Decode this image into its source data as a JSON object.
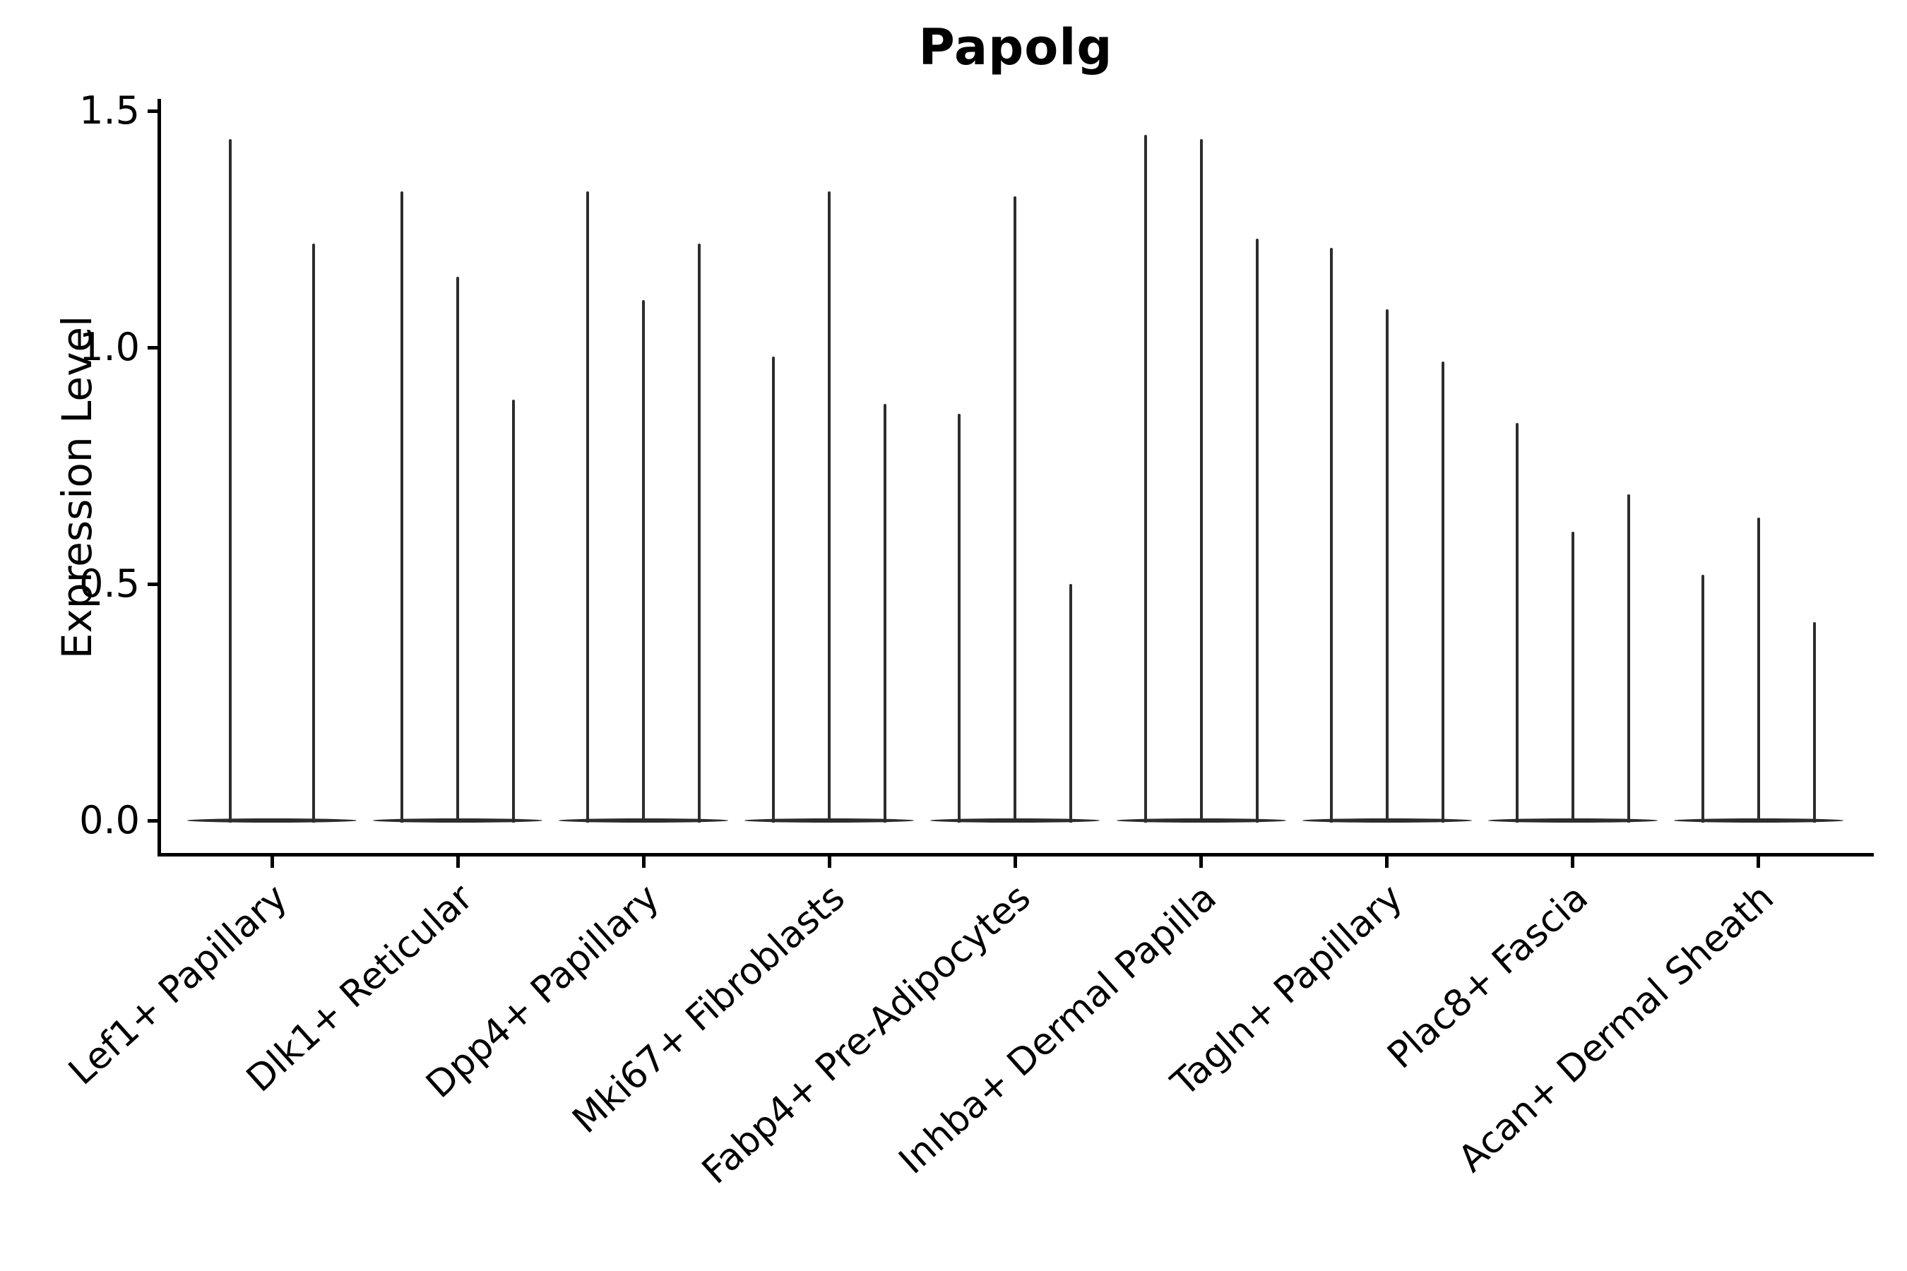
{
  "title": "Papolg",
  "ylabel": "Expression Level",
  "chart_data": {
    "type": "violin",
    "title": "Papolg",
    "xlabel": "",
    "ylabel": "Expression Level",
    "ylim": [
      -0.07,
      1.53
    ],
    "yticks": [
      "0.0",
      "0.5",
      "1.0",
      "1.5"
    ],
    "ytick_values": [
      0.0,
      0.5,
      1.0,
      1.5
    ],
    "grid": false,
    "legend_position": "none",
    "baseline_value": 0.0,
    "categories": [
      "Lef1+ Papillary",
      "Dlk1+ Reticular",
      "Dpp4+ Papillary",
      "Mki67+ Fibroblasts",
      "Fabp4+ Pre-Adipocytes",
      "Inhba+ Dermal Papilla",
      "Tagln+ Papillary",
      "Plac8+ Fascia",
      "Acan+ Dermal Sheath"
    ],
    "groups": [
      {
        "label": "Lef1+ Papillary",
        "violin_max": [
          1.44,
          1.22
        ]
      },
      {
        "label": "Dlk1+ Reticular",
        "violin_max": [
          1.33,
          1.15,
          0.89
        ]
      },
      {
        "label": "Dpp4+ Papillary",
        "violin_max": [
          1.33,
          1.1,
          1.22
        ]
      },
      {
        "label": "Mki67+ Fibroblasts",
        "violin_max": [
          0.98,
          1.33,
          0.88
        ]
      },
      {
        "label": "Fabp4+ Pre-Adipocytes",
        "violin_max": [
          0.86,
          1.32,
          0.5
        ]
      },
      {
        "label": "Inhba+ Dermal Papilla",
        "violin_max": [
          1.45,
          1.44,
          1.23
        ]
      },
      {
        "label": "Tagln+ Papillary",
        "violin_max": [
          1.21,
          1.08,
          0.97
        ]
      },
      {
        "label": "Plac8+ Fascia",
        "violin_max": [
          0.84,
          0.61,
          0.69
        ]
      },
      {
        "label": "Acan+ Dermal Sheath",
        "violin_max": [
          0.52,
          0.64,
          0.42
        ]
      }
    ],
    "colors": {
      "violin": "#2d2d2d",
      "axis": "#000000",
      "text": "#000000",
      "background": "#ffffff"
    }
  }
}
